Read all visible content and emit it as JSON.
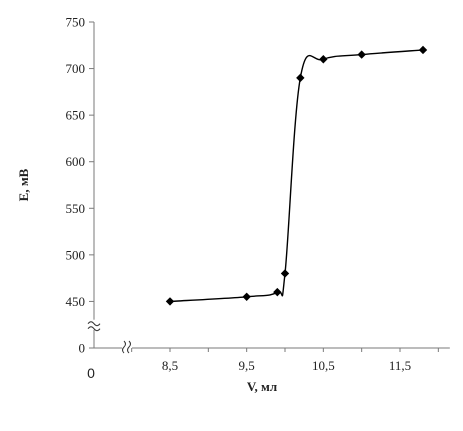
{
  "chart_data": {
    "type": "line",
    "xlabel": "V, мл",
    "ylabel": "E, мВ",
    "xlim": [
      7.75,
      12.15
    ],
    "y_ticks": [
      "0",
      "450",
      "500",
      "550",
      "600",
      "650",
      "700",
      "750"
    ],
    "y_tick_values": [
      400,
      450,
      500,
      550,
      600,
      650,
      700,
      750
    ],
    "x_ticks": [
      "8,5",
      "9,5",
      "10,5",
      "11,5"
    ],
    "x_tick_values": [
      8.5,
      9.5,
      10.5,
      11.5
    ],
    "origin_label": "0",
    "axis_break_y": true,
    "axis_break_x": true,
    "x_origin_value": 7.75,
    "y_origin_value": 400,
    "ylim": [
      400,
      750
    ],
    "grid": false,
    "series": [
      {
        "marker": "diamond",
        "color": "#000000",
        "x": [
          8.5,
          9.5,
          9.9,
          10.0,
          10.2,
          10.5,
          11.0,
          11.8
        ],
        "y": [
          450,
          455,
          460,
          480,
          690,
          710,
          715,
          720
        ]
      }
    ]
  }
}
